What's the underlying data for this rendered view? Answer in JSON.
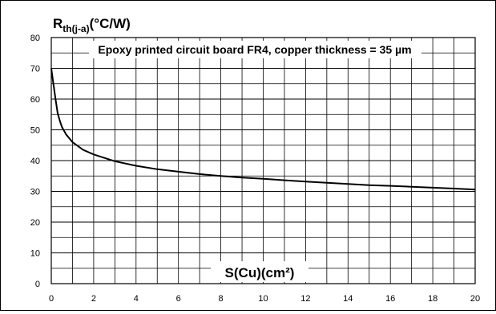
{
  "chart_data": {
    "type": "line",
    "title": "",
    "ylabel_main": "R",
    "ylabel_sub": "th(j-a)",
    "ylabel_unit": "(°C/W)",
    "xlabel": "S(Cu)(cm²)",
    "annotation": "Epoxy printed circuit board FR4, copper thickness = 35 µm",
    "xlim": [
      0,
      20
    ],
    "ylim": [
      0,
      80
    ],
    "x_ticks": [
      "0",
      "2",
      "4",
      "6",
      "8",
      "10",
      "12",
      "14",
      "16",
      "18",
      "20"
    ],
    "y_ticks": [
      "0",
      "10",
      "20",
      "30",
      "40",
      "50",
      "60",
      "70",
      "80"
    ],
    "grid": true,
    "series": [
      {
        "color": "#000000",
        "x": [
          0,
          0.1,
          0.2,
          0.3,
          0.4,
          0.5,
          0.7,
          1.0,
          1.5,
          2,
          3,
          4,
          5,
          6,
          7,
          8,
          9,
          10,
          11,
          12,
          13,
          14,
          15,
          16,
          17,
          18,
          19,
          20
        ],
        "y": [
          70,
          65,
          60,
          55.5,
          53,
          51,
          48.5,
          46,
          43.5,
          42,
          39.8,
          38.3,
          37.2,
          36.4,
          35.6,
          35,
          34.5,
          34.1,
          33.6,
          33.2,
          32.8,
          32.4,
          32,
          31.8,
          31.5,
          31.2,
          30.9,
          30.6
        ]
      }
    ]
  }
}
